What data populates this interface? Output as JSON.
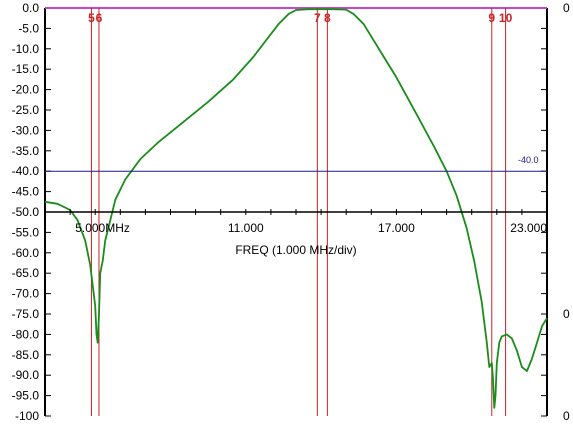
{
  "chart_data": {
    "type": "line",
    "title": "",
    "xlabel": "FREQ (1.000 MHz/div)",
    "ylabel": "",
    "xlim": [
      3.0,
      23.0
    ],
    "ylim": [
      -100,
      0
    ],
    "y_ticks": [
      "0.0",
      "-5.0",
      "-10.0",
      "-15.0",
      "-20.0",
      "-25.0",
      "-30.0",
      "-35.0",
      "-40.0",
      "-45.0",
      "-50.0",
      "-55.0",
      "-60.0",
      "-65.0",
      "-70.0",
      "-75.0",
      "-80.0",
      "-85.0",
      "-90.0",
      "-95.0",
      "-100"
    ],
    "x_tick_labels": [
      {
        "x": 5.0,
        "label": "5.000MHz"
      },
      {
        "x": 11.0,
        "label": "11.000"
      },
      {
        "x": 17.0,
        "label": "17.000"
      },
      {
        "x": 23.0,
        "label": "23.000"
      }
    ],
    "right_axis_labels": [
      "0",
      "0",
      "0"
    ],
    "reference_line": {
      "value": -40.0,
      "label": "-40.0",
      "color": "#1a1a8c"
    },
    "top_line_color": "#cc44cc",
    "markers": [
      {
        "label": "5",
        "x": 4.85
      },
      {
        "label": "6",
        "x": 5.15
      },
      {
        "label": "7",
        "x": 13.85
      },
      {
        "label": "8",
        "x": 14.25
      },
      {
        "label": "9",
        "x": 20.8
      },
      {
        "label": "10",
        "x": 21.35
      }
    ],
    "series": [
      {
        "color": "#1a8c1a",
        "x": [
          3.0,
          3.5,
          4.0,
          4.3,
          4.6,
          4.8,
          4.9,
          5.0,
          5.05,
          5.1,
          5.15,
          5.2,
          5.3,
          5.4,
          5.6,
          5.8,
          6.2,
          6.8,
          7.5,
          8.5,
          9.5,
          10.5,
          11.3,
          11.8,
          12.3,
          12.7,
          13.0,
          13.5,
          14.0,
          14.5,
          15.0,
          15.3,
          15.7,
          16.2,
          17.0,
          17.8,
          18.5,
          19.0,
          19.4,
          19.8,
          20.1,
          20.4,
          20.6,
          20.7,
          20.8,
          20.85,
          20.9,
          20.95,
          21.0,
          21.1,
          21.2,
          21.4,
          21.6,
          21.8,
          22.0,
          22.2,
          22.4,
          22.6,
          22.8,
          23.0
        ],
        "y": [
          -47.5,
          -48,
          -49.5,
          -52,
          -57,
          -63,
          -68,
          -73,
          -80,
          -82,
          -75,
          -65,
          -62,
          -57,
          -52,
          -47,
          -42,
          -37,
          -33,
          -28,
          -23,
          -17.5,
          -12,
          -8,
          -4,
          -1.5,
          -0.5,
          -0.3,
          -0.3,
          -0.3,
          -0.4,
          -1.5,
          -4,
          -9,
          -17,
          -26,
          -34,
          -40,
          -46,
          -54,
          -62,
          -72,
          -82,
          -88,
          -87,
          -91,
          -98,
          -95,
          -87,
          -82,
          -80.5,
          -80,
          -81,
          -84,
          -88,
          -89,
          -86,
          -82,
          -78,
          -76
        ]
      }
    ]
  }
}
